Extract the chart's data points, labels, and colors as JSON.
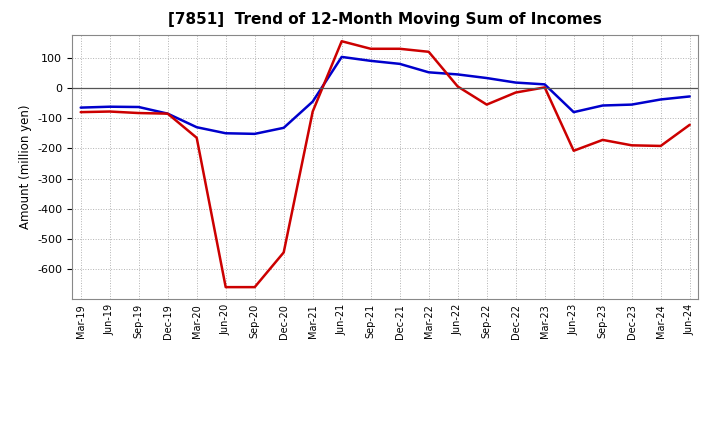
{
  "title": "[7851]  Trend of 12-Month Moving Sum of Incomes",
  "ylabel": "Amount (million yen)",
  "background_color": "#ffffff",
  "grid_color": "#aaaaaa",
  "ordinary_income_color": "#0000cc",
  "net_income_color": "#cc0000",
  "line_width": 1.8,
  "x_labels": [
    "Mar-19",
    "Jun-19",
    "Sep-19",
    "Dec-19",
    "Mar-20",
    "Jun-20",
    "Sep-20",
    "Dec-20",
    "Mar-21",
    "Jun-21",
    "Sep-21",
    "Dec-21",
    "Mar-22",
    "Jun-22",
    "Sep-22",
    "Dec-22",
    "Mar-23",
    "Jun-23",
    "Sep-23",
    "Dec-23",
    "Mar-24",
    "Jun-24"
  ],
  "ordinary_income": [
    -65,
    -62,
    -63,
    -85,
    -130,
    -150,
    -152,
    -132,
    -45,
    103,
    90,
    80,
    52,
    45,
    33,
    18,
    12,
    -80,
    -58,
    -55,
    -38,
    -28
  ],
  "net_income": [
    -80,
    -78,
    -83,
    -85,
    -165,
    -660,
    -660,
    -545,
    -78,
    155,
    130,
    130,
    120,
    5,
    -55,
    -15,
    2,
    -208,
    -172,
    -190,
    -192,
    -122
  ],
  "ylim": [
    -700,
    175
  ],
  "yticks": [
    -600,
    -500,
    -400,
    -300,
    -200,
    -100,
    0,
    100
  ]
}
